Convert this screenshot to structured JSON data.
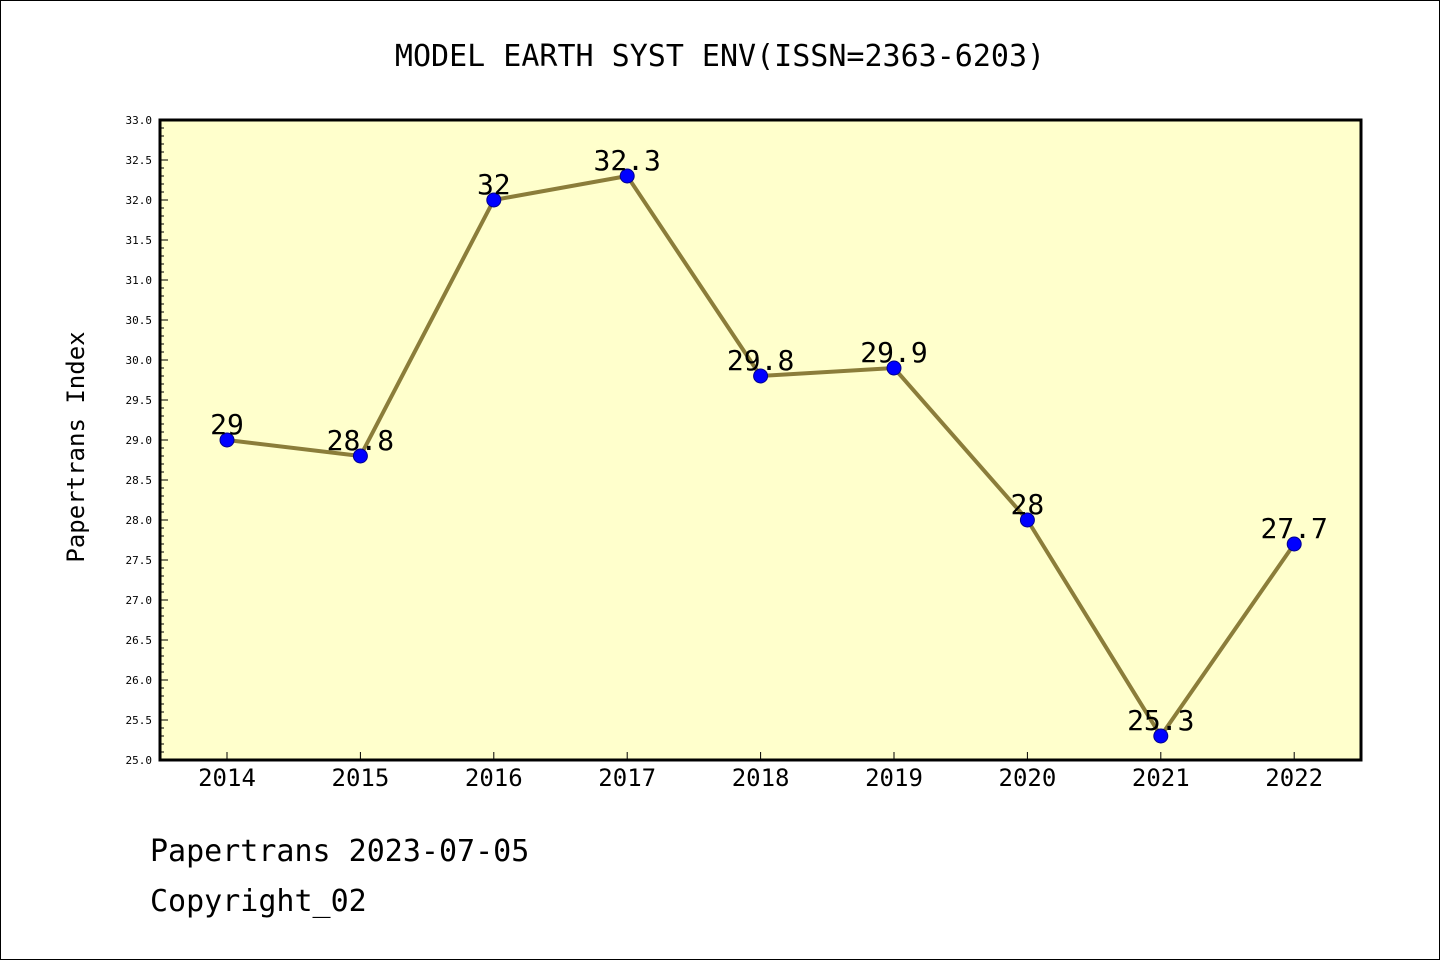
{
  "chart_data": {
    "type": "line",
    "title": "MODEL EARTH SYST ENV(ISSN=2363-6203)",
    "xlabel": "",
    "ylabel": "Papertrans Index",
    "categories": [
      "2014",
      "2015",
      "2016",
      "2017",
      "2018",
      "2019",
      "2020",
      "2021",
      "2022"
    ],
    "series": [
      {
        "values": [
          29,
          28.8,
          32,
          32.3,
          29.8,
          29.9,
          28,
          25.3,
          27.7
        ],
        "labels": [
          "29",
          "28.8",
          "32",
          "32.3",
          "29.8",
          "29.9",
          "28",
          "25.3",
          "27.7"
        ]
      }
    ],
    "ylim": [
      25.0,
      33.0
    ],
    "yticks": [
      "25.0",
      "25.5",
      "26.0",
      "26.5",
      "27.0",
      "27.5",
      "28.0",
      "28.5",
      "29.0",
      "29.5",
      "30.0",
      "30.5",
      "31.0",
      "31.5",
      "32.0",
      "32.5",
      "33.0"
    ],
    "grid": false,
    "colors": {
      "plot_background": "#ffffcc",
      "line": "#8b7d3a",
      "marker": "#0000ff"
    }
  },
  "footer": {
    "line1": "Papertrans 2023-07-05",
    "line2": "Copyright_02"
  }
}
